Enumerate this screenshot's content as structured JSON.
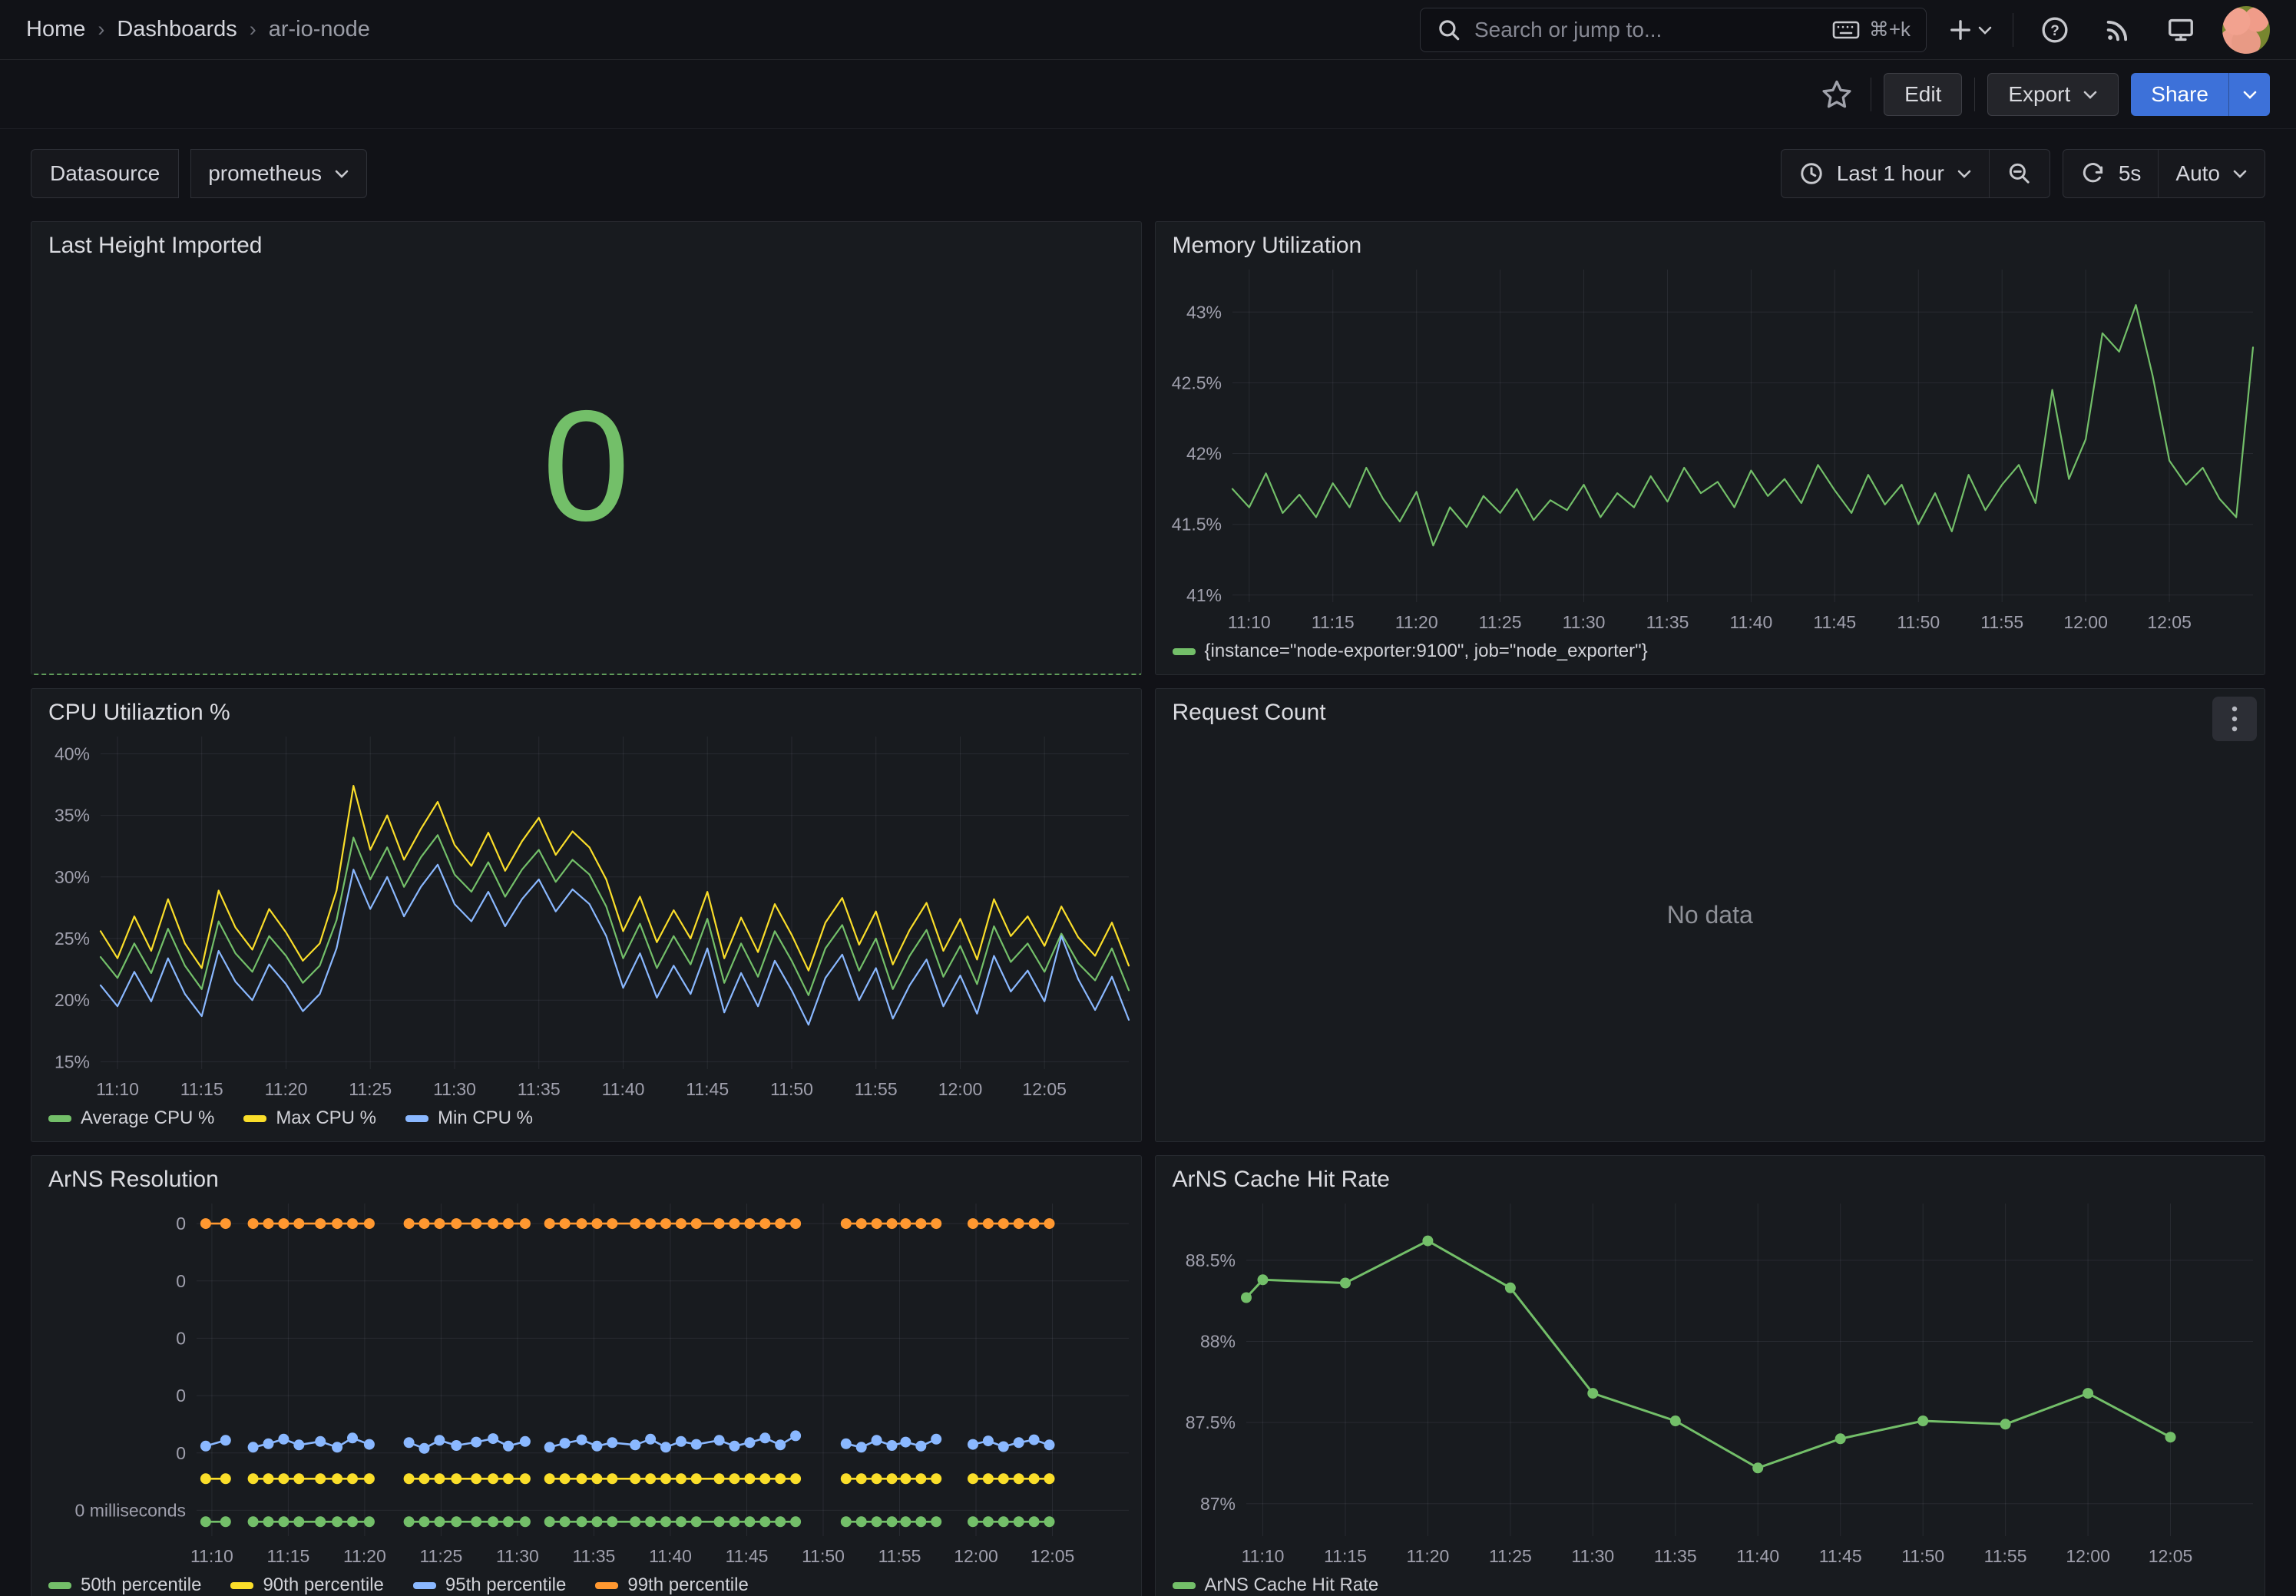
{
  "nav": {
    "breadcrumbs": [
      {
        "label": "Home"
      },
      {
        "label": "Dashboards"
      },
      {
        "label": "ar-io-node"
      }
    ],
    "breadcrumb_separator": "›",
    "search": {
      "placeholder": "Search or jump to...",
      "shortcut": "⌘+k"
    }
  },
  "toolbar": {
    "edit_label": "Edit",
    "export_label": "Export",
    "share_label": "Share"
  },
  "controls": {
    "datasource_label": "Datasource",
    "datasource_value": "prometheus",
    "time_range": "Last 1 hour",
    "refresh_interval": "5s",
    "refresh_mode": "Auto"
  },
  "colors": {
    "green": "#73BF69",
    "yellow": "#FADE2A",
    "blue": "#8AB8FF",
    "orange": "#FF9830",
    "share_button": "#3D71D9",
    "stat_value": "#73BF69",
    "page_bg": "#111217",
    "panel_bg": "#181B1F"
  },
  "panels": {
    "last_height": {
      "title": "Last Height Imported",
      "value": "0"
    },
    "memory": {
      "title": "Memory Utilization"
    },
    "cpu": {
      "title": "CPU Utiliaztion %"
    },
    "requests": {
      "title": "Request Count",
      "message": "No data"
    },
    "arns_resolution": {
      "title": "ArNS Resolution"
    },
    "arns_cache": {
      "title": "ArNS Cache Hit Rate"
    }
  },
  "chart_data": [
    {
      "panel": "memory",
      "type": "line",
      "title": "Memory Utilization",
      "xlim": [
        0,
        61
      ],
      "ylim": [
        40.95,
        43.3
      ],
      "x_tick_minutes": [
        1,
        6,
        11,
        16,
        21,
        26,
        31,
        36,
        41,
        46,
        51,
        56
      ],
      "x_tick_labels": [
        "11:10",
        "11:15",
        "11:20",
        "11:25",
        "11:30",
        "11:35",
        "11:40",
        "11:45",
        "11:50",
        "11:55",
        "12:00",
        "12:05"
      ],
      "y_ticks": [
        41,
        41.5,
        42,
        42.5,
        43
      ],
      "y_tick_labels": [
        "41%",
        "41.5%",
        "42%",
        "42.5%",
        "43%"
      ],
      "label_width": 100,
      "line_width": 2.2,
      "series": [
        {
          "name": "{instance=\"node-exporter:9100\", job=\"node_exporter\"}",
          "color": "#73BF69",
          "x_start": 0,
          "x_step": 1,
          "values": [
            41.75,
            41.62,
            41.86,
            41.58,
            41.71,
            41.55,
            41.79,
            41.62,
            41.9,
            41.68,
            41.52,
            41.73,
            41.35,
            41.62,
            41.48,
            41.7,
            41.58,
            41.75,
            41.53,
            41.67,
            41.6,
            41.78,
            41.55,
            41.72,
            41.62,
            41.84,
            41.66,
            41.9,
            41.72,
            41.8,
            41.62,
            41.88,
            41.7,
            41.82,
            41.65,
            41.92,
            41.74,
            41.58,
            41.85,
            41.64,
            41.78,
            41.5,
            41.72,
            41.45,
            41.85,
            41.6,
            41.78,
            41.92,
            41.65,
            42.45,
            41.82,
            42.1,
            42.85,
            42.72,
            43.05,
            42.55,
            41.95,
            41.78,
            41.9,
            41.68,
            41.55,
            42.75
          ]
        }
      ]
    },
    {
      "panel": "cpu",
      "type": "line",
      "title": "CPU Utiliaztion %",
      "xlim": [
        0,
        61
      ],
      "ylim": [
        14.4,
        41.4
      ],
      "x_tick_minutes": [
        1,
        6,
        11,
        16,
        21,
        26,
        31,
        36,
        41,
        46,
        51,
        56
      ],
      "x_tick_labels": [
        "11:10",
        "11:15",
        "11:20",
        "11:25",
        "11:30",
        "11:35",
        "11:40",
        "11:45",
        "11:50",
        "11:55",
        "12:00",
        "12:05"
      ],
      "y_ticks": [
        40,
        35,
        30,
        25,
        20,
        15
      ],
      "y_tick_labels": [
        "40%",
        "35%",
        "30%",
        "25%",
        "20%",
        "15%"
      ],
      "label_width": 90,
      "line_width": 2.2,
      "series": [
        {
          "name": "Average CPU %",
          "color": "#73BF69",
          "x_start": 0,
          "x_step": 1,
          "values": [
            23.5,
            21.8,
            24.6,
            22.2,
            25.8,
            22.8,
            20.9,
            26.4,
            23.8,
            22.3,
            25.2,
            23.6,
            21.4,
            22.8,
            26.5,
            33.2,
            29.8,
            32.4,
            29.2,
            31.6,
            33.4,
            30.2,
            28.8,
            31.2,
            28.4,
            30.6,
            32.2,
            29.6,
            31.4,
            30.2,
            27.6,
            23.4,
            26.2,
            22.6,
            25.2,
            22.9,
            26.6,
            21.4,
            24.6,
            21.9,
            25.6,
            23.2,
            20.4,
            24.2,
            26.1,
            22.4,
            25.0,
            20.9,
            23.6,
            25.7,
            21.9,
            24.4,
            21.3,
            26.0,
            23.1,
            24.6,
            22.3,
            25.4,
            23.0,
            21.6,
            24.2,
            20.8
          ]
        },
        {
          "name": "Max CPU %",
          "color": "#FADE2A",
          "x_start": 0,
          "x_step": 1,
          "values": [
            25.6,
            23.4,
            26.8,
            24.0,
            28.2,
            24.6,
            22.6,
            28.9,
            25.9,
            24.1,
            27.4,
            25.5,
            23.2,
            24.6,
            28.9,
            37.4,
            32.2,
            35.0,
            31.4,
            33.9,
            36.1,
            32.6,
            30.9,
            33.6,
            30.5,
            32.9,
            34.8,
            31.8,
            33.7,
            32.4,
            29.8,
            25.6,
            28.4,
            24.7,
            27.3,
            25.0,
            28.8,
            23.4,
            26.7,
            23.9,
            27.8,
            25.3,
            22.4,
            26.3,
            28.3,
            24.5,
            27.2,
            22.9,
            25.7,
            27.9,
            24.0,
            26.6,
            23.3,
            28.2,
            25.2,
            26.8,
            24.4,
            27.6,
            25.1,
            23.6,
            26.3,
            22.8
          ]
        },
        {
          "name": "Min CPU %",
          "color": "#8AB8FF",
          "x_start": 0,
          "x_step": 1,
          "values": [
            21.2,
            19.5,
            22.3,
            19.9,
            23.4,
            20.5,
            18.7,
            24.0,
            21.5,
            20.0,
            22.9,
            21.3,
            19.1,
            20.5,
            24.2,
            30.6,
            27.4,
            30.0,
            26.8,
            29.2,
            31.0,
            27.8,
            26.4,
            28.8,
            26.0,
            28.2,
            29.8,
            27.2,
            29.0,
            27.8,
            25.2,
            21.0,
            23.8,
            20.2,
            22.8,
            20.5,
            24.2,
            19.0,
            22.2,
            19.5,
            23.2,
            20.8,
            18.0,
            21.8,
            23.7,
            20.0,
            22.6,
            18.5,
            21.2,
            23.3,
            19.5,
            22.0,
            18.9,
            23.6,
            20.7,
            22.4,
            19.9,
            25.2,
            21.7,
            19.2,
            21.9,
            18.4
          ]
        }
      ]
    },
    {
      "panel": "arns_resolution",
      "type": "line",
      "title": "ArNS Resolution",
      "xlim": [
        0,
        61
      ],
      "ylim": [
        -0.45,
        5.35
      ],
      "x_tick_minutes": [
        1,
        6,
        11,
        16,
        21,
        26,
        31,
        36,
        41,
        46,
        51,
        56
      ],
      "x_tick_labels": [
        "11:10",
        "11:15",
        "11:20",
        "11:25",
        "11:30",
        "11:35",
        "11:40",
        "11:45",
        "11:50",
        "11:55",
        "12:00",
        "12:05"
      ],
      "y_ticks": [
        5,
        4,
        3,
        2,
        1,
        0
      ],
      "y_tick_labels": [
        "0",
        "0",
        "0",
        "0",
        "0",
        "0 milliseconds"
      ],
      "label_width": 215,
      "line_width": 2.6,
      "markers": true,
      "marker_radius": 7,
      "gap_break": 1.6,
      "x_points": [
        0.6,
        1.9,
        3.7,
        4.7,
        5.7,
        6.7,
        8.1,
        9.2,
        10.2,
        11.3,
        13.9,
        14.9,
        15.9,
        17.0,
        18.3,
        19.4,
        20.4,
        21.5,
        23.1,
        24.1,
        25.2,
        26.2,
        27.2,
        28.7,
        29.7,
        30.7,
        31.7,
        32.7,
        34.2,
        35.2,
        36.2,
        37.2,
        38.2,
        39.2,
        42.5,
        43.5,
        44.5,
        45.5,
        46.4,
        47.4,
        48.4,
        50.8,
        51.8,
        52.8,
        53.8,
        54.8,
        55.8
      ],
      "series": [
        {
          "name": "50th percentile",
          "color": "#73BF69",
          "const": -0.2,
          "unit": "ms",
          "value": 0
        },
        {
          "name": "90th percentile",
          "color": "#FADE2A",
          "const": 0.55,
          "unit": "ms",
          "value": 0
        },
        {
          "name": "95th percentile",
          "color": "#8AB8FF",
          "unit": "ms",
          "value": 0,
          "values": [
            1.12,
            1.22,
            1.1,
            1.16,
            1.24,
            1.14,
            1.2,
            1.1,
            1.26,
            1.15,
            1.18,
            1.08,
            1.22,
            1.13,
            1.19,
            1.25,
            1.12,
            1.2,
            1.1,
            1.17,
            1.23,
            1.12,
            1.18,
            1.14,
            1.24,
            1.1,
            1.2,
            1.15,
            1.22,
            1.12,
            1.18,
            1.26,
            1.14,
            1.3,
            1.16,
            1.1,
            1.22,
            1.13,
            1.19,
            1.12,
            1.24,
            1.15,
            1.21,
            1.11,
            1.18,
            1.23,
            1.14
          ]
        },
        {
          "name": "99th percentile",
          "color": "#FF9830",
          "const": 5.0,
          "unit": "ms",
          "value": 0
        }
      ]
    },
    {
      "panel": "arns_cache",
      "type": "line",
      "title": "ArNS Cache Hit Rate",
      "xlim": [
        0,
        61
      ],
      "ylim": [
        86.8,
        88.85
      ],
      "x_tick_minutes": [
        1,
        6,
        11,
        16,
        21,
        26,
        31,
        36,
        41,
        46,
        51,
        56
      ],
      "x_tick_labels": [
        "11:10",
        "11:15",
        "11:20",
        "11:25",
        "11:30",
        "11:35",
        "11:40",
        "11:45",
        "11:50",
        "11:55",
        "12:00",
        "12:05"
      ],
      "y_ticks": [
        88.5,
        88,
        87.5,
        87
      ],
      "y_tick_labels": [
        "88.5%",
        "88%",
        "87.5%",
        "87%"
      ],
      "label_width": 118,
      "line_width": 3,
      "markers": true,
      "marker_radius": 7,
      "series": [
        {
          "name": "ArNS Cache Hit Rate",
          "color": "#73BF69",
          "x": [
            0,
            1,
            6,
            11,
            16,
            21,
            26,
            31,
            36,
            41,
            46,
            51,
            56
          ],
          "values": [
            88.27,
            88.38,
            88.36,
            88.62,
            88.33,
            87.68,
            87.51,
            87.22,
            87.4,
            87.51,
            87.49,
            87.68,
            87.41
          ]
        }
      ]
    }
  ]
}
